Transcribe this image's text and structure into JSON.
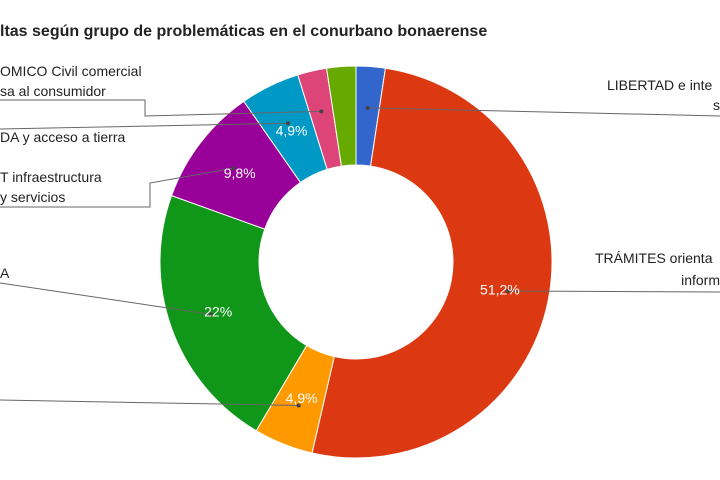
{
  "chart_data": {
    "type": "pie",
    "donut": true,
    "title": "ltas según grupo de problemáticas en el conurbano bonaerense",
    "slices": [
      {
        "label_lines": [
          "LIBERTAD e inte",
          "s"
        ],
        "value": 2.4,
        "color": "#3366cc",
        "display": ""
      },
      {
        "label_lines": [
          "TRÁMITES orienta",
          "inform"
        ],
        "value": 51.2,
        "color": "#dc3912",
        "display": "51,2%"
      },
      {
        "label_lines": [],
        "value": 4.9,
        "color": "#ff9900",
        "display": "4,9%"
      },
      {
        "label_lines": [
          "A"
        ],
        "value": 22.0,
        "color": "#109618",
        "display": "22%"
      },
      {
        "label_lines": [
          "T infraestructura",
          "y servicios"
        ],
        "value": 9.8,
        "color": "#990099",
        "display": "9,8%"
      },
      {
        "label_lines": [
          "DA y acceso a tierra"
        ],
        "value": 4.9,
        "color": "#0099c6",
        "display": "4,9%"
      },
      {
        "label_lines": [
          "OMICO Civil comercial",
          "sa al consumidor"
        ],
        "value": 2.4,
        "color": "#dd4477",
        "display": ""
      },
      {
        "label_lines": [],
        "value": 2.4,
        "color": "#66aa00",
        "display": ""
      }
    ]
  }
}
